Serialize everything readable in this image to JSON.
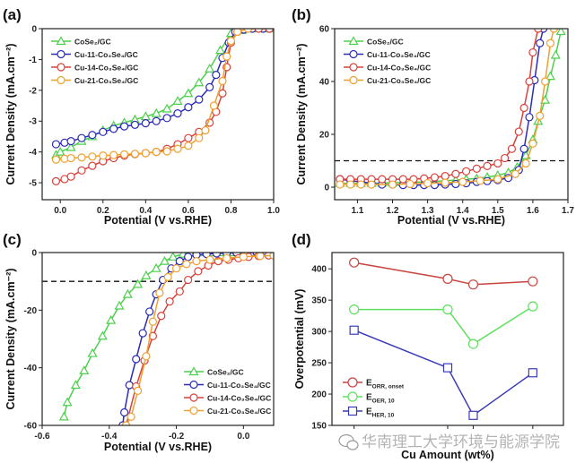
{
  "watermark": {
    "text": "华南理工大学环境与能源学院",
    "icon": "wechat-icon"
  },
  "chart_data": [
    {
      "panel": "(a)",
      "type": "line",
      "xlabel": "Potential (V vs.RHE)",
      "ylabel": "Current Density (mA.cm⁻²)",
      "xlim": [
        -0.085,
        1.0
      ],
      "ylim": [
        -5.55,
        0
      ],
      "xticks": [
        0.0,
        0.2,
        0.4,
        0.6,
        0.8,
        1.0
      ],
      "xticklabels": [
        "0.0",
        "0.2",
        "0.4",
        "0.6",
        "0.8",
        "1.0"
      ],
      "yticks": [
        0,
        -1,
        -2,
        -3,
        -4,
        -5
      ],
      "yticklabels": [
        "0",
        "-1",
        "-2",
        "-3",
        "-4",
        "-5"
      ],
      "legend": "top-left",
      "grid": false,
      "series": [
        {
          "name": "CoSe₂/GC",
          "color": "#4cd04c",
          "marker": "triangle",
          "x": [
            -0.02,
            0.0,
            0.05,
            0.1,
            0.15,
            0.2,
            0.25,
            0.3,
            0.35,
            0.4,
            0.45,
            0.5,
            0.55,
            0.6,
            0.65,
            0.7,
            0.75,
            0.8,
            0.85,
            0.9,
            0.95,
            1.0
          ],
          "y": [
            -4.1,
            -4.0,
            -3.85,
            -3.65,
            -3.5,
            -3.3,
            -3.15,
            -3.05,
            -2.95,
            -2.85,
            -2.75,
            -2.6,
            -2.35,
            -2.1,
            -1.75,
            -1.3,
            -0.7,
            -0.15,
            -0.05,
            0,
            0,
            0
          ]
        },
        {
          "name": "Cu-11-Co₃Se₄/GC",
          "color": "#2b2bb5",
          "marker": "circle",
          "x": [
            -0.02,
            0.02,
            0.05,
            0.1,
            0.15,
            0.2,
            0.25,
            0.3,
            0.35,
            0.4,
            0.45,
            0.5,
            0.55,
            0.6,
            0.65,
            0.7,
            0.73,
            0.76,
            0.79,
            0.82,
            0.86,
            0.9,
            0.95,
            0.98
          ],
          "y": [
            -3.75,
            -3.7,
            -3.65,
            -3.55,
            -3.45,
            -3.35,
            -3.25,
            -3.17,
            -3.12,
            -3.07,
            -3.0,
            -2.9,
            -2.75,
            -2.55,
            -2.3,
            -1.9,
            -1.5,
            -0.95,
            -0.45,
            -0.1,
            -0.03,
            0,
            0,
            0
          ]
        },
        {
          "name": "Cu-14-Co₃Se₄/GC",
          "color": "#d8423c",
          "marker": "circle",
          "x": [
            -0.02,
            0.02,
            0.05,
            0.1,
            0.15,
            0.2,
            0.25,
            0.3,
            0.35,
            0.4,
            0.45,
            0.5,
            0.55,
            0.6,
            0.65,
            0.7,
            0.73,
            0.76,
            0.78,
            0.8,
            0.83,
            0.88,
            0.93,
            0.98
          ],
          "y": [
            -4.95,
            -4.88,
            -4.8,
            -4.6,
            -4.45,
            -4.3,
            -4.2,
            -4.12,
            -4.07,
            -4.04,
            -4.0,
            -3.9,
            -3.75,
            -3.55,
            -3.35,
            -3.05,
            -2.7,
            -2.1,
            -1.25,
            -0.45,
            -0.1,
            0,
            0,
            0
          ]
        },
        {
          "name": "Cu-21-Co₃Se₄/GC",
          "color": "#f0a030",
          "marker": "circle",
          "x": [
            -0.02,
            0.02,
            0.05,
            0.1,
            0.15,
            0.2,
            0.25,
            0.3,
            0.35,
            0.4,
            0.45,
            0.5,
            0.55,
            0.6,
            0.65,
            0.68,
            0.72,
            0.76,
            0.78,
            0.8,
            0.83,
            0.88
          ],
          "y": [
            -4.25,
            -4.22,
            -4.2,
            -4.18,
            -4.15,
            -4.12,
            -4.1,
            -4.08,
            -4.06,
            -4.04,
            -4.0,
            -3.98,
            -3.9,
            -3.8,
            -3.55,
            -3.3,
            -2.5,
            -1.7,
            -0.9,
            -0.4,
            -0.1,
            0
          ]
        }
      ]
    },
    {
      "panel": "(b)",
      "type": "line",
      "xlabel": "Potential (V vs.RHE)",
      "ylabel": "Current Density (mA.cm⁻²)",
      "xlim": [
        1.035,
        1.7
      ],
      "ylim": [
        -4.75,
        60
      ],
      "xticks": [
        1.1,
        1.2,
        1.3,
        1.4,
        1.5,
        1.6,
        1.7
      ],
      "xticklabels": [
        "1.1",
        "1.2",
        "1.3",
        "1.4",
        "1.5",
        "1.6",
        "1.7"
      ],
      "yticks": [
        0,
        20,
        40,
        60
      ],
      "yticklabels": [
        "0",
        "20",
        "40",
        "60"
      ],
      "reference_line": {
        "y": 10,
        "style": "dashed"
      },
      "legend": "top-left",
      "grid": false,
      "series": [
        {
          "name": "CoSe₂/GC",
          "color": "#4cd04c",
          "marker": "triangle",
          "x": [
            1.05,
            1.08,
            1.11,
            1.14,
            1.17,
            1.2,
            1.23,
            1.26,
            1.29,
            1.32,
            1.35,
            1.38,
            1.41,
            1.44,
            1.47,
            1.5,
            1.53,
            1.555,
            1.58,
            1.6,
            1.615,
            1.635,
            1.65,
            1.665,
            1.68
          ],
          "y": [
            1.5,
            1.5,
            1.5,
            1.5,
            1.6,
            1.7,
            1.8,
            1.9,
            2.0,
            2.2,
            2.4,
            2.7,
            3.0,
            3.3,
            3.8,
            4.5,
            5.5,
            7.5,
            12,
            18,
            25,
            33,
            42,
            50,
            59
          ]
        },
        {
          "name": "Cu-11-Co₃Se₄/GC",
          "color": "#2b2bb5",
          "marker": "circle",
          "x": [
            1.05,
            1.08,
            1.11,
            1.14,
            1.17,
            1.2,
            1.23,
            1.26,
            1.29,
            1.32,
            1.35,
            1.38,
            1.41,
            1.44,
            1.47,
            1.5,
            1.53,
            1.56,
            1.575,
            1.59,
            1.605,
            1.62,
            1.63
          ],
          "y": [
            3,
            2.5,
            2,
            1.5,
            1,
            1,
            0.8,
            0.8,
            0.8,
            0.8,
            1,
            1.2,
            1.5,
            2,
            2.3,
            2.7,
            3.5,
            6.5,
            14.5,
            26.5,
            40.5,
            54.5,
            60
          ]
        },
        {
          "name": "Cu-14-Co₃Se₄/GC",
          "color": "#d8423c",
          "marker": "circle",
          "x": [
            1.05,
            1.08,
            1.11,
            1.14,
            1.17,
            1.2,
            1.23,
            1.26,
            1.29,
            1.32,
            1.35,
            1.38,
            1.41,
            1.44,
            1.47,
            1.5,
            1.52,
            1.54,
            1.56,
            1.575,
            1.59,
            1.6,
            1.615
          ],
          "y": [
            3,
            3,
            3,
            3,
            3,
            3,
            3,
            3,
            3.3,
            3.7,
            4.2,
            5,
            6,
            7,
            8,
            9,
            11,
            14.5,
            21,
            30,
            40,
            51,
            60
          ]
        },
        {
          "name": "Cu-21-Co₃Se₄/GC",
          "color": "#f0a030",
          "marker": "circle",
          "x": [
            1.05,
            1.08,
            1.11,
            1.14,
            1.2,
            1.25,
            1.3,
            1.35,
            1.4,
            1.45,
            1.5,
            1.55,
            1.58,
            1.6,
            1.62,
            1.635,
            1.65,
            1.66
          ],
          "y": [
            1,
            1,
            1,
            1,
            1,
            1.2,
            1.5,
            1.7,
            2,
            2.4,
            3,
            5,
            9,
            16.5,
            27,
            40,
            54.5,
            60
          ]
        }
      ]
    },
    {
      "panel": "(c)",
      "type": "line",
      "xlabel": "Potential (V vs.RHE)",
      "ylabel": "Current Density (mA.cm⁻²)",
      "xlim": [
        -0.6,
        0.09
      ],
      "ylim": [
        -60,
        0
      ],
      "xticks": [
        -0.6,
        -0.4,
        -0.2,
        0.0
      ],
      "xticklabels": [
        "-0.6",
        "-0.4",
        "-0.2",
        "0.0"
      ],
      "yticks": [
        0,
        -20,
        -40,
        -60
      ],
      "yticklabels": [
        "0",
        "-20",
        "-40",
        "-60"
      ],
      "reference_line": {
        "y": -10,
        "style": "dashed"
      },
      "legend": "bottom-right",
      "grid": false,
      "series": [
        {
          "name": "CoSe₂/GC",
          "color": "#4cd04c",
          "marker": "triangle",
          "x": [
            -0.535,
            -0.525,
            -0.5,
            -0.475,
            -0.45,
            -0.42,
            -0.395,
            -0.37,
            -0.345,
            -0.315,
            -0.29,
            -0.26,
            -0.235,
            -0.21,
            -0.18,
            -0.16,
            -0.13,
            -0.1,
            -0.07,
            -0.04,
            -0.01,
            0.02,
            0.05,
            0.08
          ],
          "y": [
            -57,
            -52,
            -46,
            -41,
            -35,
            -29,
            -23.5,
            -18.5,
            -14.5,
            -11,
            -8,
            -5.5,
            -3,
            -1.5,
            -0.5,
            0,
            0,
            0,
            0,
            0,
            0,
            0,
            0,
            0
          ]
        },
        {
          "name": "Cu-11-Co₃Se₄/GC",
          "color": "#2b2bb5",
          "marker": "circle",
          "x": [
            -0.36,
            -0.355,
            -0.34,
            -0.32,
            -0.3,
            -0.28,
            -0.26,
            -0.24,
            -0.215,
            -0.19,
            -0.165,
            -0.14,
            -0.11,
            -0.08,
            -0.05,
            -0.02,
            0.01,
            0.04,
            0.07,
            0.09
          ],
          "y": [
            -60,
            -55.5,
            -46,
            -37,
            -28,
            -20.5,
            -14.5,
            -9.5,
            -5.5,
            -3,
            -1.5,
            -0.8,
            -0.5,
            -0.3,
            -0.2,
            -0.1,
            -0.1,
            0,
            0,
            0
          ]
        },
        {
          "name": "Cu-14-Co₃Se₄/GC",
          "color": "#d8423c",
          "marker": "circle",
          "x": [
            -0.35,
            -0.32,
            -0.295,
            -0.27,
            -0.245,
            -0.22,
            -0.19,
            -0.165,
            -0.135,
            -0.105,
            -0.075,
            -0.045,
            -0.015,
            0.015,
            0.045,
            0.075,
            0.09
          ],
          "y": [
            -60,
            -46.5,
            -37.5,
            -29,
            -22,
            -17,
            -13.5,
            -9.5,
            -6.5,
            -4.5,
            -3,
            -2.5,
            -2,
            -1.5,
            -1.2,
            -1,
            -1
          ]
        },
        {
          "name": "Cu-21-Co₃Se₄/GC",
          "color": "#f0a030",
          "marker": "circle",
          "x": [
            -0.35,
            -0.335,
            -0.315,
            -0.29,
            -0.27,
            -0.25,
            -0.225,
            -0.2,
            -0.17,
            -0.14,
            -0.1,
            -0.05,
            0.0,
            0.05,
            0.09
          ],
          "y": [
            -60,
            -57,
            -48,
            -36,
            -24,
            -14,
            -8.5,
            -5.5,
            -4,
            -3,
            -2.5,
            -2,
            -1.5,
            -1.2,
            -1
          ]
        }
      ]
    },
    {
      "panel": "(d)",
      "type": "line",
      "xlabel": "Cu Amount (wt%)",
      "ylabel": "Overpotential (mV)",
      "xlim": [
        -2.6,
        24.6
      ],
      "ylim": [
        150,
        426
      ],
      "xticks": [
        0,
        11,
        14,
        21
      ],
      "xticklabels": [],
      "yticks": [
        150,
        200,
        250,
        300,
        350,
        400
      ],
      "yticklabels": [
        "150",
        "200",
        "250",
        "300",
        "350",
        "400"
      ],
      "legend": "bottom-left",
      "grid": false,
      "series": [
        {
          "name": "E",
          "sub": "ORR, onset",
          "color": "#c8453f",
          "marker": "circle",
          "x": [
            0,
            11,
            14,
            21
          ],
          "y": [
            410,
            384,
            375,
            380
          ]
        },
        {
          "name": "E",
          "sub": "OER, 10",
          "color": "#5ee05e",
          "marker": "circle",
          "x": [
            0,
            11,
            14,
            21
          ],
          "y": [
            335,
            335,
            280,
            340
          ]
        },
        {
          "name": "E",
          "sub": "HER, 10",
          "color": "#3a3ab8",
          "marker": "square",
          "x": [
            0,
            11,
            14,
            21
          ],
          "y": [
            302,
            242,
            166,
            234
          ]
        }
      ]
    }
  ]
}
